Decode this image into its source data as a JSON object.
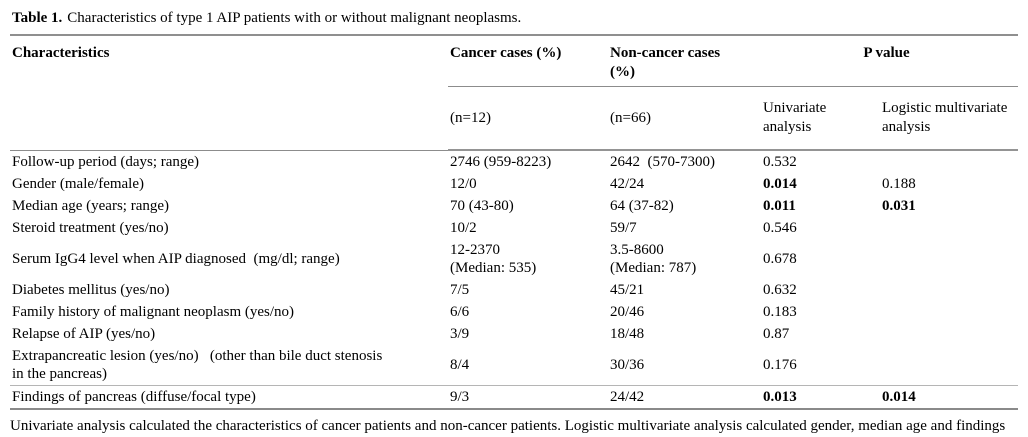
{
  "title": {
    "label": "Table 1.",
    "caption": "Characteristics of type 1 AIP patients with or without malignant neoplasms."
  },
  "table": {
    "header": {
      "characteristics": "Characteristics",
      "cancer": "Cancer cases (%)",
      "noncancer": "Non-cancer cases\n(%)",
      "pvalue": "P value",
      "cancer_n": "(n=12)",
      "noncancer_n": "(n=66)",
      "univariate": "Univariate analysis",
      "multivariate": "Logistic multivariate analysis"
    },
    "rows": [
      {
        "characteristic": "Follow-up period (days; range)",
        "cancer": "2746 (959-8223)",
        "noncancer": "2642  (570-7300)",
        "univariate": "0.532",
        "multivariate": "",
        "univariate_bold": false,
        "multivariate_bold": false
      },
      {
        "characteristic": "Gender (male/female)",
        "cancer": "12/0",
        "noncancer": "42/24",
        "univariate": "0.014",
        "multivariate": "0.188",
        "univariate_bold": true,
        "multivariate_bold": false
      },
      {
        "characteristic": "Median age (years; range)",
        "cancer": "70 (43-80)",
        "noncancer": "64 (37-82)",
        "univariate": "0.011",
        "multivariate": "0.031",
        "univariate_bold": true,
        "multivariate_bold": true
      },
      {
        "characteristic": "Steroid treatment (yes/no)",
        "cancer": "10/2",
        "noncancer": "59/7",
        "univariate": "0.546",
        "multivariate": "",
        "univariate_bold": false,
        "multivariate_bold": false
      },
      {
        "characteristic": "Serum IgG4 level when AIP diagnosed  (mg/dl; range)",
        "cancer": "12-2370\n(Median: 535)",
        "noncancer": "3.5-8600\n(Median: 787)",
        "univariate": "0.678",
        "multivariate": "",
        "univariate_bold": false,
        "multivariate_bold": false
      },
      {
        "characteristic": "Diabetes mellitus (yes/no)",
        "cancer": "7/5",
        "noncancer": "45/21",
        "univariate": "0.632",
        "multivariate": "",
        "univariate_bold": false,
        "multivariate_bold": false
      },
      {
        "characteristic": "Family history of malignant neoplasm (yes/no)",
        "cancer": "6/6",
        "noncancer": "20/46",
        "univariate": "0.183",
        "multivariate": "",
        "univariate_bold": false,
        "multivariate_bold": false
      },
      {
        "characteristic": "Relapse of AIP (yes/no)",
        "cancer": "3/9",
        "noncancer": "18/48",
        "univariate": "0.87",
        "multivariate": "",
        "univariate_bold": false,
        "multivariate_bold": false
      },
      {
        "characteristic": "Extrapancreatic lesion (yes/no)   (other than bile duct stenosis\nin the pancreas)",
        "cancer": "8/4",
        "noncancer": "30/36",
        "univariate": "0.176",
        "multivariate": "",
        "univariate_bold": false,
        "multivariate_bold": false
      },
      {
        "characteristic": "Findings of pancreas (diffuse/focal type)",
        "cancer": "9/3",
        "noncancer": "24/42",
        "univariate": "0.013",
        "multivariate": "0.014",
        "univariate_bold": true,
        "multivariate_bold": true
      }
    ]
  },
  "footnote": "Univariate analysis calculated the characteristics of cancer patients and non-cancer patients. Logistic multivariate analysis calculated gender, median age and findings of pancreas, which are items that were significantly different in univariate analysis."
}
